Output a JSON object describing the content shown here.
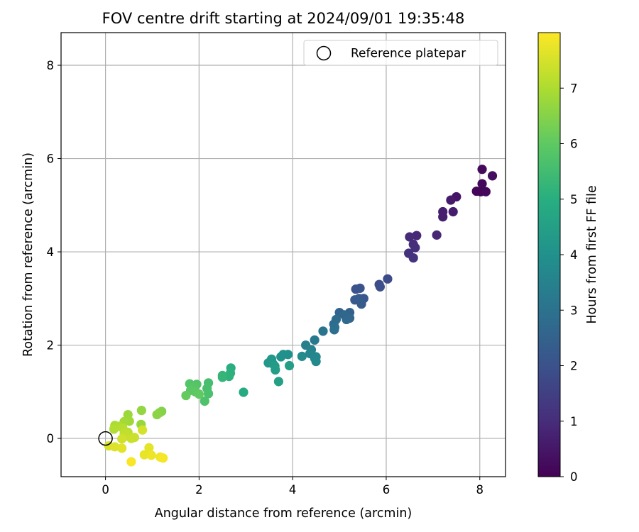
{
  "chart_data": {
    "type": "scatter",
    "title": "FOV centre drift starting at 2024/09/01 19:35:48",
    "xlabel": "Angular distance from reference (arcmin)",
    "ylabel": "Rotation from reference (arcmin)",
    "xlim": [
      -0.95,
      8.55
    ],
    "ylim": [
      -0.82,
      8.7
    ],
    "xticks": [
      0,
      2,
      4,
      6,
      8
    ],
    "yticks": [
      0,
      2,
      4,
      6,
      8
    ],
    "grid": true,
    "legend": {
      "position": "top-right",
      "entries": [
        "Reference platepar"
      ]
    },
    "reference_point": {
      "x": 0,
      "y": 0,
      "label": "Reference platepar"
    },
    "colorbar": {
      "label": "Hours from first FF file",
      "min": 0,
      "max": 8,
      "ticks": [
        0,
        1,
        2,
        3,
        4,
        5,
        6,
        7
      ],
      "colormap": "viridis"
    },
    "points": [
      {
        "x": 8.02,
        "y": 5.29,
        "c": 0.1
      },
      {
        "x": 8.13,
        "y": 5.29,
        "c": 0.15
      },
      {
        "x": 7.93,
        "y": 5.3,
        "c": 0.12
      },
      {
        "x": 8.05,
        "y": 5.46,
        "c": 0.18
      },
      {
        "x": 8.05,
        "y": 5.77,
        "c": 0.2
      },
      {
        "x": 8.27,
        "y": 5.63,
        "c": 0.28
      },
      {
        "x": 7.5,
        "y": 5.18,
        "c": 0.45
      },
      {
        "x": 7.38,
        "y": 5.11,
        "c": 0.55
      },
      {
        "x": 7.43,
        "y": 4.86,
        "c": 0.62
      },
      {
        "x": 7.21,
        "y": 4.86,
        "c": 0.72
      },
      {
        "x": 7.21,
        "y": 4.75,
        "c": 0.7
      },
      {
        "x": 7.08,
        "y": 4.36,
        "c": 0.85
      },
      {
        "x": 6.65,
        "y": 4.35,
        "c": 0.9
      },
      {
        "x": 6.5,
        "y": 4.32,
        "c": 0.95
      },
      {
        "x": 6.58,
        "y": 4.16,
        "c": 1.05
      },
      {
        "x": 6.62,
        "y": 4.09,
        "c": 1.1
      },
      {
        "x": 6.48,
        "y": 3.97,
        "c": 1.15
      },
      {
        "x": 6.58,
        "y": 3.87,
        "c": 1.2
      },
      {
        "x": 6.03,
        "y": 3.42,
        "c": 1.85
      },
      {
        "x": 5.85,
        "y": 3.3,
        "c": 1.9
      },
      {
        "x": 5.87,
        "y": 3.25,
        "c": 1.95
      },
      {
        "x": 5.44,
        "y": 3.22,
        "c": 2.05
      },
      {
        "x": 5.35,
        "y": 3.2,
        "c": 2.1
      },
      {
        "x": 5.52,
        "y": 3.0,
        "c": 2.2
      },
      {
        "x": 5.42,
        "y": 3.0,
        "c": 2.25
      },
      {
        "x": 5.33,
        "y": 2.97,
        "c": 2.3
      },
      {
        "x": 5.47,
        "y": 2.88,
        "c": 2.35
      },
      {
        "x": 5.22,
        "y": 2.7,
        "c": 2.55
      },
      {
        "x": 5.0,
        "y": 2.7,
        "c": 2.6
      },
      {
        "x": 5.1,
        "y": 2.65,
        "c": 2.65
      },
      {
        "x": 5.22,
        "y": 2.58,
        "c": 2.7
      },
      {
        "x": 5.15,
        "y": 2.55,
        "c": 2.75
      },
      {
        "x": 4.93,
        "y": 2.55,
        "c": 2.8
      },
      {
        "x": 4.88,
        "y": 2.45,
        "c": 2.85
      },
      {
        "x": 4.9,
        "y": 2.38,
        "c": 2.9
      },
      {
        "x": 4.89,
        "y": 2.33,
        "c": 2.95
      },
      {
        "x": 4.65,
        "y": 2.3,
        "c": 3.1
      },
      {
        "x": 4.47,
        "y": 2.11,
        "c": 3.25
      },
      {
        "x": 4.28,
        "y": 2.0,
        "c": 3.45
      },
      {
        "x": 4.4,
        "y": 1.9,
        "c": 3.55
      },
      {
        "x": 4.37,
        "y": 1.82,
        "c": 3.6
      },
      {
        "x": 4.5,
        "y": 1.75,
        "c": 3.65
      },
      {
        "x": 4.47,
        "y": 1.72,
        "c": 3.7
      },
      {
        "x": 4.5,
        "y": 1.65,
        "c": 3.75
      },
      {
        "x": 4.2,
        "y": 1.76,
        "c": 3.8
      },
      {
        "x": 3.9,
        "y": 1.8,
        "c": 3.95
      },
      {
        "x": 3.8,
        "y": 1.8,
        "c": 4.0
      },
      {
        "x": 3.75,
        "y": 1.75,
        "c": 4.05
      },
      {
        "x": 3.55,
        "y": 1.7,
        "c": 4.2
      },
      {
        "x": 3.48,
        "y": 1.62,
        "c": 4.25
      },
      {
        "x": 3.58,
        "y": 1.6,
        "c": 4.3
      },
      {
        "x": 3.62,
        "y": 1.55,
        "c": 4.35
      },
      {
        "x": 3.63,
        "y": 1.47,
        "c": 4.4
      },
      {
        "x": 3.93,
        "y": 1.56,
        "c": 4.45
      },
      {
        "x": 3.7,
        "y": 1.22,
        "c": 4.55
      },
      {
        "x": 2.95,
        "y": 0.99,
        "c": 4.9
      },
      {
        "x": 2.68,
        "y": 1.51,
        "c": 5.05
      },
      {
        "x": 2.67,
        "y": 1.4,
        "c": 5.1
      },
      {
        "x": 2.64,
        "y": 1.33,
        "c": 5.15
      },
      {
        "x": 2.5,
        "y": 1.35,
        "c": 5.25
      },
      {
        "x": 2.5,
        "y": 1.31,
        "c": 5.3
      },
      {
        "x": 2.2,
        "y": 1.19,
        "c": 5.6
      },
      {
        "x": 2.17,
        "y": 1.07,
        "c": 5.65
      },
      {
        "x": 2.2,
        "y": 0.96,
        "c": 5.7
      },
      {
        "x": 2.12,
        "y": 0.8,
        "c": 5.75
      },
      {
        "x": 1.95,
        "y": 1.16,
        "c": 5.8
      },
      {
        "x": 1.8,
        "y": 1.17,
        "c": 5.85
      },
      {
        "x": 1.9,
        "y": 1.1,
        "c": 5.9
      },
      {
        "x": 1.82,
        "y": 1.03,
        "c": 5.95
      },
      {
        "x": 1.92,
        "y": 1.0,
        "c": 6.0
      },
      {
        "x": 2.0,
        "y": 0.95,
        "c": 6.05
      },
      {
        "x": 1.72,
        "y": 0.92,
        "c": 6.1
      },
      {
        "x": 1.2,
        "y": 0.58,
        "c": 6.5
      },
      {
        "x": 1.15,
        "y": 0.55,
        "c": 6.55
      },
      {
        "x": 1.1,
        "y": 0.51,
        "c": 6.6
      },
      {
        "x": 0.77,
        "y": 0.6,
        "c": 6.7
      },
      {
        "x": 0.48,
        "y": 0.51,
        "c": 6.8
      },
      {
        "x": 0.76,
        "y": 0.3,
        "c": 6.75
      },
      {
        "x": 0.51,
        "y": 0.37,
        "c": 6.85
      },
      {
        "x": 0.4,
        "y": 0.36,
        "c": 6.9
      },
      {
        "x": 0.2,
        "y": 0.28,
        "c": 7.0
      },
      {
        "x": 0.28,
        "y": 0.26,
        "c": 7.05
      },
      {
        "x": 0.18,
        "y": 0.2,
        "c": 7.1
      },
      {
        "x": 0.37,
        "y": 0.22,
        "c": 7.15
      },
      {
        "x": 0.48,
        "y": 0.13,
        "c": 7.2
      },
      {
        "x": 0.4,
        "y": 0.1,
        "c": 7.25
      },
      {
        "x": 0.45,
        "y": 0.05,
        "c": 7.3
      },
      {
        "x": 0.55,
        "y": 0.0,
        "c": 7.35
      },
      {
        "x": 0.62,
        "y": 0.02,
        "c": 7.4
      },
      {
        "x": 0.35,
        "y": -0.01,
        "c": 7.45
      },
      {
        "x": 0.79,
        "y": 0.18,
        "c": 7.5
      },
      {
        "x": 0.07,
        "y": -0.16,
        "c": 7.55
      },
      {
        "x": 0.2,
        "y": -0.18,
        "c": 7.6
      },
      {
        "x": 0.35,
        "y": -0.21,
        "c": 7.65
      },
      {
        "x": 0.93,
        "y": -0.2,
        "c": 7.7
      },
      {
        "x": 0.83,
        "y": -0.35,
        "c": 7.75
      },
      {
        "x": 0.98,
        "y": -0.36,
        "c": 7.8
      },
      {
        "x": 1.17,
        "y": -0.4,
        "c": 7.85
      },
      {
        "x": 1.23,
        "y": -0.42,
        "c": 7.9
      },
      {
        "x": 0.55,
        "y": -0.5,
        "c": 7.95
      }
    ]
  }
}
